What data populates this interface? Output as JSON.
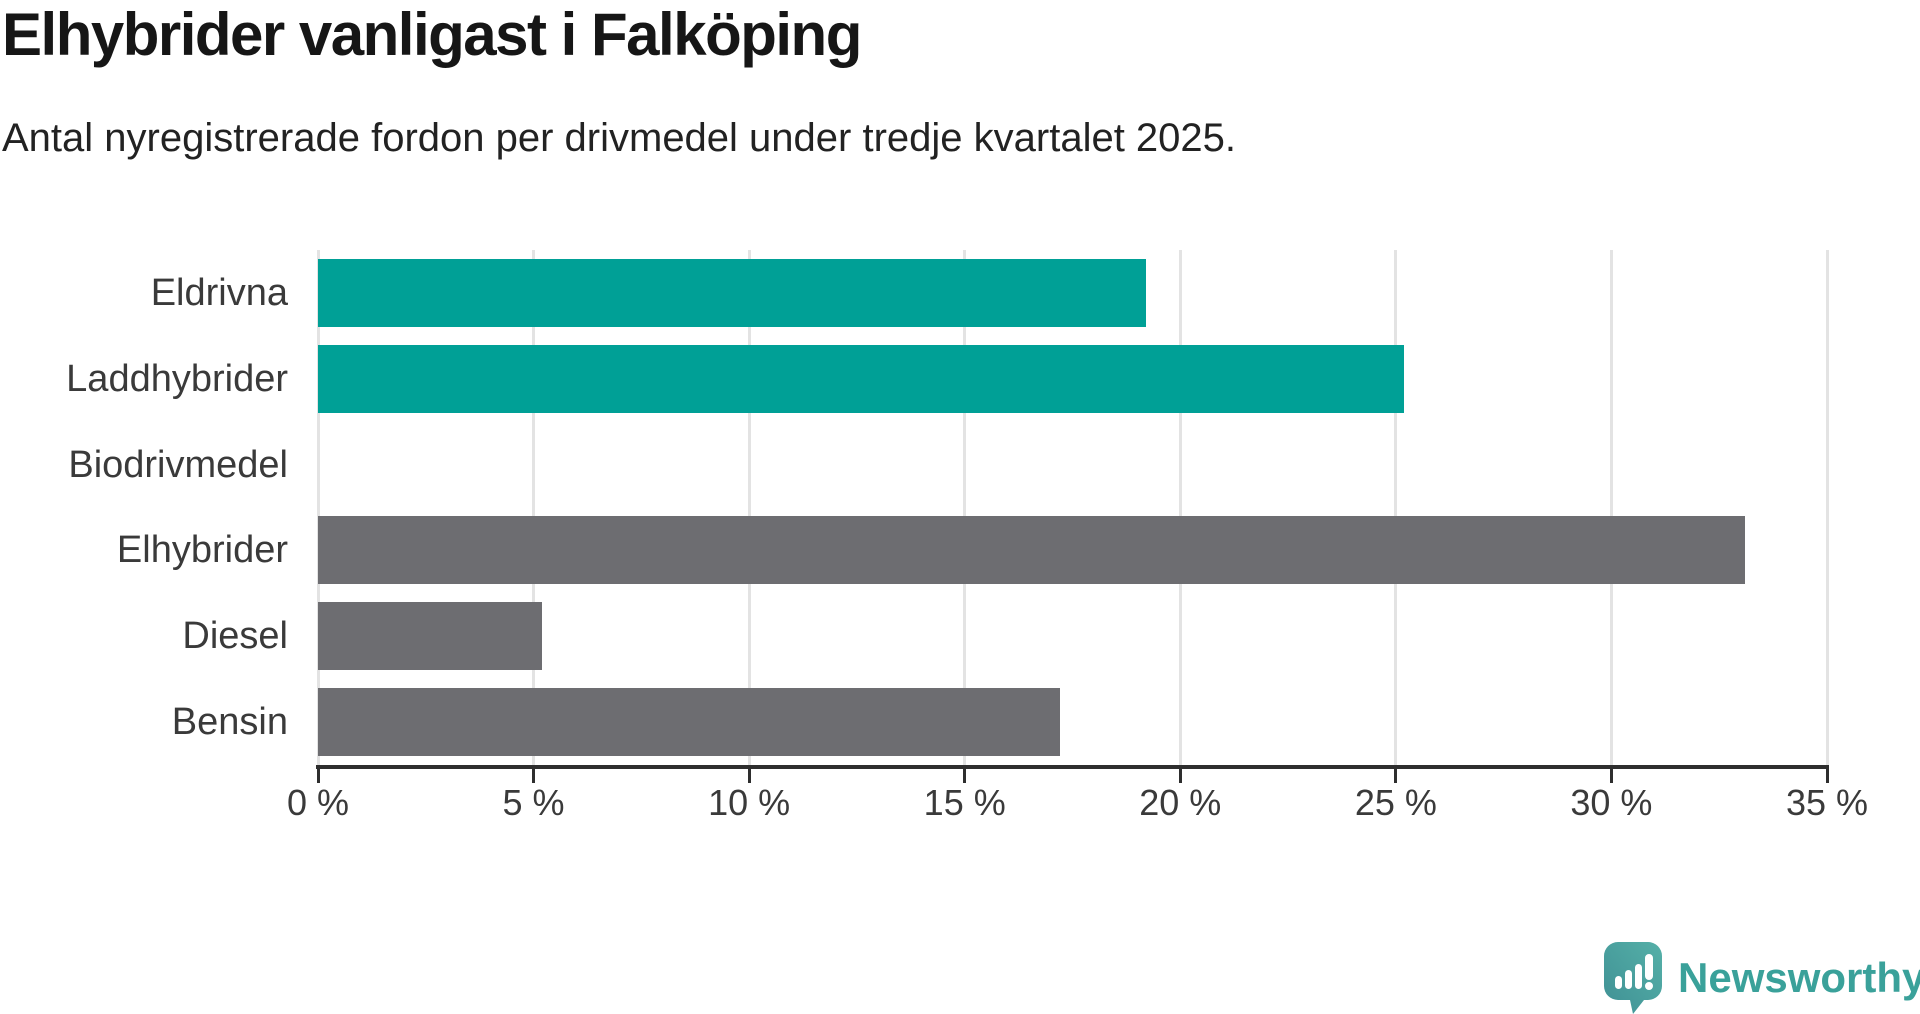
{
  "title": "Elhybrider vanligast i Falköping",
  "subtitle": "Antal nyregistrerade fordon per drivmedel under tredje kvartalet 2025.",
  "chart_data": {
    "type": "bar",
    "orientation": "horizontal",
    "title": "Elhybrider vanligast i Falköping",
    "subtitle": "Antal nyregistrerade fordon per drivmedel under tredje kvartalet 2025.",
    "categories": [
      "Eldrivna",
      "Laddhybrider",
      "Biodrivmedel",
      "Elhybrider",
      "Diesel",
      "Bensin"
    ],
    "values": [
      19.2,
      25.2,
      0,
      33.1,
      5.2,
      17.2
    ],
    "unit": "%",
    "xlim": [
      0,
      35
    ],
    "x_ticks": [
      0,
      5,
      10,
      15,
      20,
      25,
      30,
      35
    ],
    "x_tick_labels": [
      "0 %",
      "5 %",
      "10 %",
      "15 %",
      "20 %",
      "25 %",
      "30 %",
      "35 %"
    ],
    "grid": "vertical-gridlines-on",
    "legend": "none",
    "bar_colors": [
      "#00a096",
      "#00a096",
      "#6d6d71",
      "#6d6d71",
      "#6d6d71",
      "#6d6d71"
    ]
  },
  "colors": {
    "highlight_teal": "#00a096",
    "neutral_gray": "#6d6d71",
    "title_text": "#161616",
    "label_text": "#3a3a3a",
    "axis": "#2e2e2e",
    "gridline": "#e3e3e3",
    "logo_teal": "#4ba29c",
    "logo_text_teal": "#3aa19a",
    "background": "#ffffff"
  },
  "branding": {
    "logo_text": "Newsworthy",
    "logo_icon": "newsworthy-speech-bubble-barchart-icon"
  }
}
